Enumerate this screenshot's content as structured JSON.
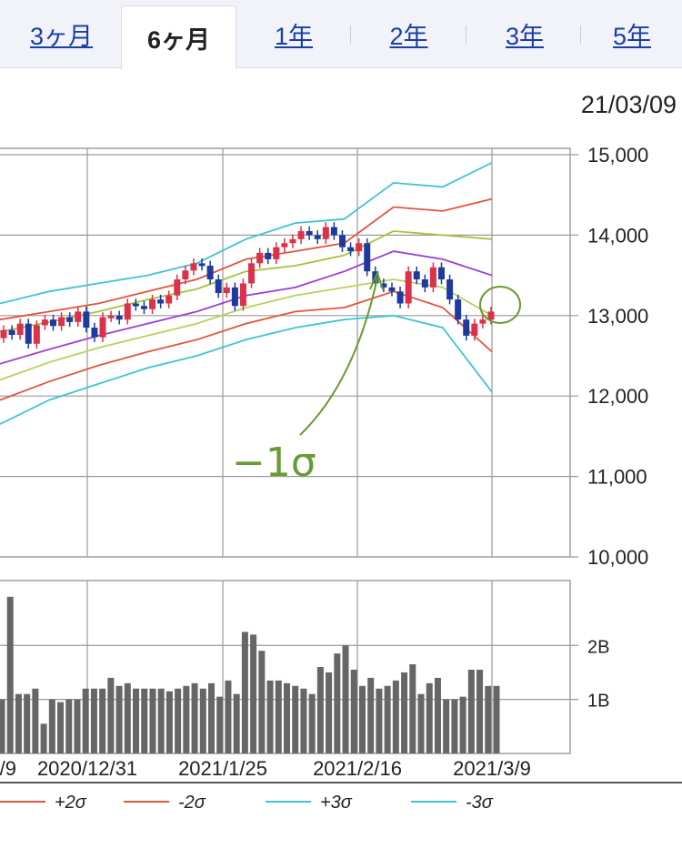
{
  "tabs": [
    {
      "label": "3ヶ月",
      "active": false
    },
    {
      "label": "6ヶ月",
      "active": true
    },
    {
      "label": "1年",
      "active": false
    },
    {
      "label": "2年",
      "active": false
    },
    {
      "label": "3年",
      "active": false
    },
    {
      "label": "5年",
      "active": false
    }
  ],
  "date_label": "21/03/09",
  "annotation": {
    "text": "−1σ",
    "color": "#6a9a35"
  },
  "colors": {
    "up": "#d9324a",
    "down": "#1e3a9e",
    "volume": "#666666",
    "grid": "#9a9a9a",
    "ma": "#a3c43a",
    "sigma1": "#b6d35a",
    "sigma2": "#e2553b",
    "sigma3": "#3ec4d4",
    "mid": "#9b3fd6"
  },
  "chart_data": [
    {
      "type": "line",
      "title": "",
      "y_ticks": [
        "15,000",
        "14,000",
        "13,000",
        "12,000",
        "11,000",
        "10,000"
      ],
      "y_tick_values": [
        15000,
        14000,
        13000,
        12000,
        11000,
        10000
      ],
      "ylim": [
        10000,
        15000
      ],
      "x_tick_labels": [
        "/9",
        "2020/12/31",
        "2021/1/25",
        "2021/2/16",
        "2021/3/9"
      ],
      "x": [
        0,
        10,
        20,
        30,
        40,
        50,
        60,
        70,
        80,
        90,
        100
      ],
      "series": [
        {
          "name": "+3σ",
          "color": "#3ec4d4",
          "values": [
            13150,
            13300,
            13400,
            13500,
            13650,
            13950,
            14150,
            14200,
            14650,
            14600,
            14900
          ]
        },
        {
          "name": "+2σ",
          "color": "#e2553b",
          "values": [
            12950,
            13050,
            13150,
            13300,
            13450,
            13700,
            13800,
            13900,
            14350,
            14300,
            14450
          ]
        },
        {
          "name": "",
          "color": "#a3c43a",
          "values": [
            12800,
            12920,
            13050,
            13200,
            13330,
            13550,
            13620,
            13750,
            14050,
            14000,
            13950
          ]
        },
        {
          "name": "",
          "color": "#9b3fd6",
          "values": [
            12400,
            12580,
            12750,
            12900,
            13050,
            13250,
            13350,
            13550,
            13800,
            13700,
            13500
          ]
        },
        {
          "name": "",
          "color": "#b6d35a",
          "values": [
            12200,
            12420,
            12600,
            12750,
            12900,
            13100,
            13250,
            13350,
            13450,
            13350,
            13000
          ]
        },
        {
          "name": "-2σ",
          "color": "#e2553b",
          "values": [
            11950,
            12180,
            12380,
            12550,
            12700,
            12900,
            13050,
            13100,
            13300,
            13100,
            12550
          ]
        },
        {
          "name": "-3σ",
          "color": "#3ec4d4",
          "values": [
            11650,
            11950,
            12150,
            12350,
            12500,
            12700,
            12850,
            12950,
            13000,
            12850,
            12050
          ]
        }
      ],
      "candles_close": [
        12820,
        12760,
        12900,
        12650,
        12880,
        12950,
        12870,
        12980,
        12920,
        13050,
        12850,
        12730,
        12980,
        13000,
        12950,
        13150,
        13120,
        13080,
        13200,
        13150,
        13250,
        13450,
        13560,
        13650,
        13620,
        13450,
        13280,
        13350,
        13120,
        13400,
        13650,
        13780,
        13700,
        13850,
        13900,
        13950,
        14050,
        14000,
        13950,
        14100,
        14000,
        13850,
        13800,
        13900,
        13550,
        13400,
        13350,
        13300,
        13150,
        13550,
        13450,
        13350,
        13600,
        13450,
        13200,
        12950,
        12750,
        12900,
        12950,
        13050
      ],
      "candles_open": [
        12720,
        12820,
        12760,
        12900,
        12650,
        12880,
        12950,
        12870,
        12980,
        12920,
        13050,
        12850,
        12730,
        12980,
        13000,
        12950,
        13150,
        13120,
        13080,
        13200,
        13150,
        13250,
        13450,
        13560,
        13650,
        13620,
        13450,
        13280,
        13350,
        13120,
        13400,
        13650,
        13780,
        13700,
        13850,
        13900,
        13950,
        14050,
        14000,
        13950,
        14100,
        14000,
        13850,
        13800,
        13900,
        13550,
        13400,
        13350,
        13300,
        13150,
        13550,
        13450,
        13350,
        13600,
        13450,
        13200,
        12950,
        12750,
        12900,
        12950
      ]
    },
    {
      "type": "bar",
      "title": "",
      "y_ticks": [
        "2B",
        "1B"
      ],
      "y_tick_values": [
        2000000000,
        1000000000
      ],
      "ylim": [
        0,
        3200000000
      ],
      "values": [
        1000000000,
        2900000000,
        1100000000,
        1100000000,
        1200000000,
        550000000,
        1000000000,
        950000000,
        1000000000,
        1000000000,
        1200000000,
        1200000000,
        1200000000,
        1400000000,
        1250000000,
        1300000000,
        1200000000,
        1200000000,
        1200000000,
        1200000000,
        1150000000,
        1200000000,
        1250000000,
        1300000000,
        1200000000,
        1300000000,
        1050000000,
        1350000000,
        1100000000,
        2250000000,
        2200000000,
        1900000000,
        1350000000,
        1350000000,
        1300000000,
        1250000000,
        1200000000,
        1100000000,
        1600000000,
        1500000000,
        1850000000,
        2000000000,
        1550000000,
        1250000000,
        1400000000,
        1200000000,
        1250000000,
        1350000000,
        1500000000,
        1650000000,
        1100000000,
        1300000000,
        1400000000,
        1000000000,
        1000000000,
        1050000000,
        1550000000,
        1550000000,
        1250000000,
        1250000000
      ]
    }
  ],
  "legend": [
    {
      "label": "+2σ",
      "color": "#e2553b"
    },
    {
      "label": "-2σ",
      "color": "#e2553b"
    },
    {
      "label": "+3σ",
      "color": "#3ec4d4"
    },
    {
      "label": "-3σ",
      "color": "#3ec4d4"
    }
  ]
}
